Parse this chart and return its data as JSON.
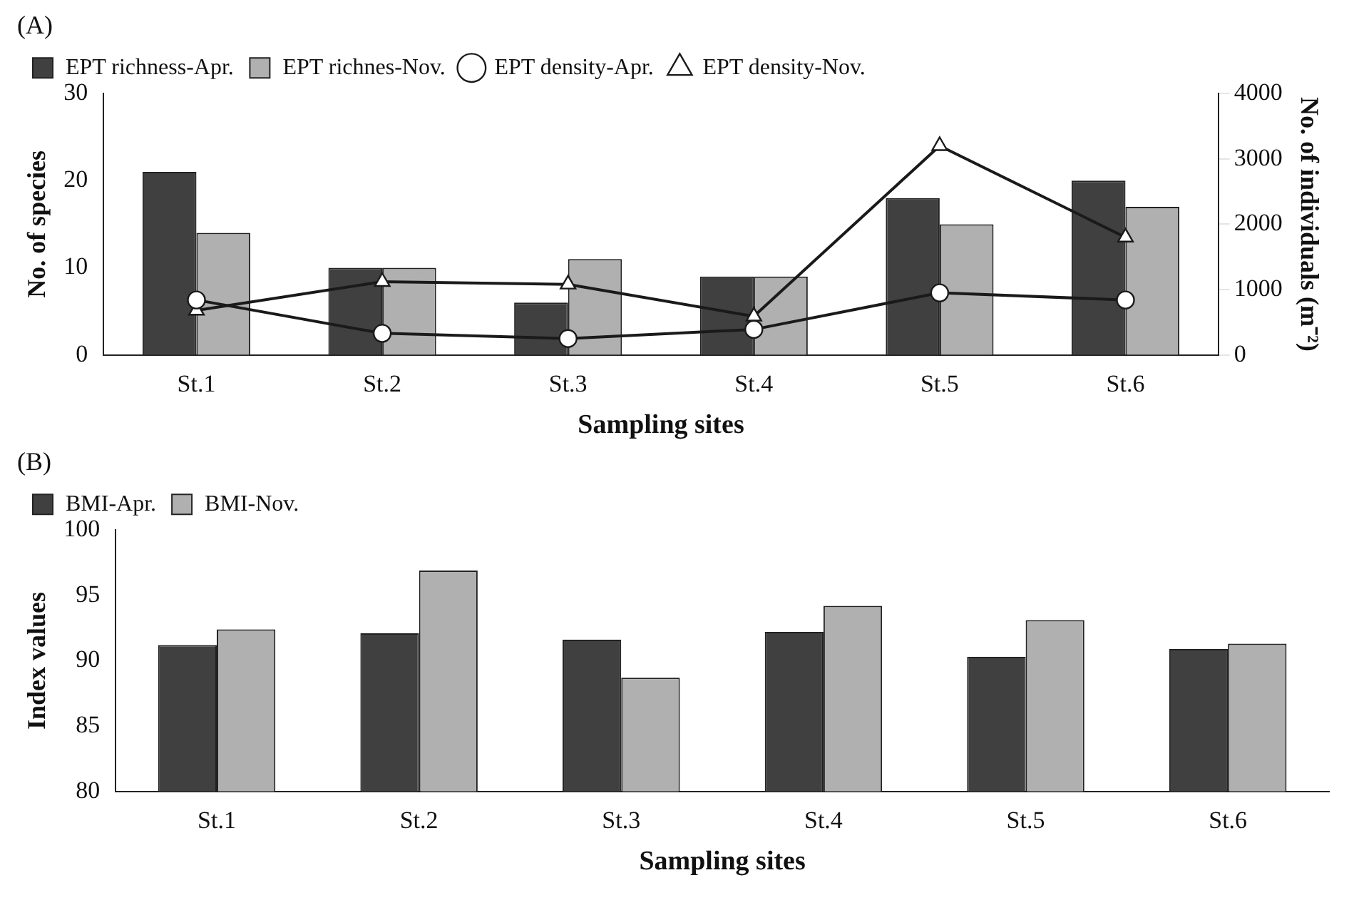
{
  "chart_data": [
    {
      "type": "bar",
      "title": "(A)",
      "categories": [
        "St.1",
        "St.2",
        "St.3",
        "St.4",
        "St.5",
        "St.6"
      ],
      "xlabel": "Sampling sites",
      "ylabel": "No. of species",
      "y2label": "No. of individuals (m⁻²)",
      "ylim": [
        0,
        30
      ],
      "yticks": [
        0,
        10,
        20,
        30
      ],
      "y2lim": [
        0,
        4000
      ],
      "y2ticks": [
        0,
        1000,
        2000,
        3000,
        4000
      ],
      "legend": "top left",
      "grid": false,
      "series": [
        {
          "name": "EPT richness-Apr.",
          "color": "#404040",
          "values": [
            21,
            10,
            6,
            9,
            18,
            20
          ]
        },
        {
          "name": "EPT richnes-Nov.",
          "color": "#b0b0b0",
          "values": [
            14,
            10,
            11,
            9,
            15,
            17
          ]
        },
        {
          "name": "EPT density-Apr.",
          "type": "line",
          "axis": "y2",
          "marker": "circle",
          "color": "#1a1a1a",
          "values": [
            840,
            330,
            250,
            390,
            950,
            840
          ]
        },
        {
          "name": "EPT density-Nov.",
          "type": "line",
          "axis": "y2",
          "marker": "triangle",
          "color": "#1a1a1a",
          "values": [
            680,
            1120,
            1080,
            590,
            3200,
            1800
          ]
        }
      ]
    },
    {
      "type": "bar",
      "title": "(B)",
      "categories": [
        "St.1",
        "St.2",
        "St.3",
        "St.4",
        "St.5",
        "St.6"
      ],
      "xlabel": "Sampling sites",
      "ylabel": "Index values",
      "ylim": [
        80,
        100
      ],
      "yticks": [
        80,
        85,
        90,
        95,
        100
      ],
      "legend": "top left",
      "grid": false,
      "series": [
        {
          "name": "BMI-Apr.",
          "color": "#404040",
          "values": [
            91.2,
            92.1,
            91.6,
            92.2,
            90.3,
            90.9
          ]
        },
        {
          "name": "BMI-Nov.",
          "color": "#b0b0b0",
          "values": [
            92.4,
            96.9,
            88.7,
            94.2,
            93.1,
            91.3
          ]
        }
      ]
    }
  ]
}
